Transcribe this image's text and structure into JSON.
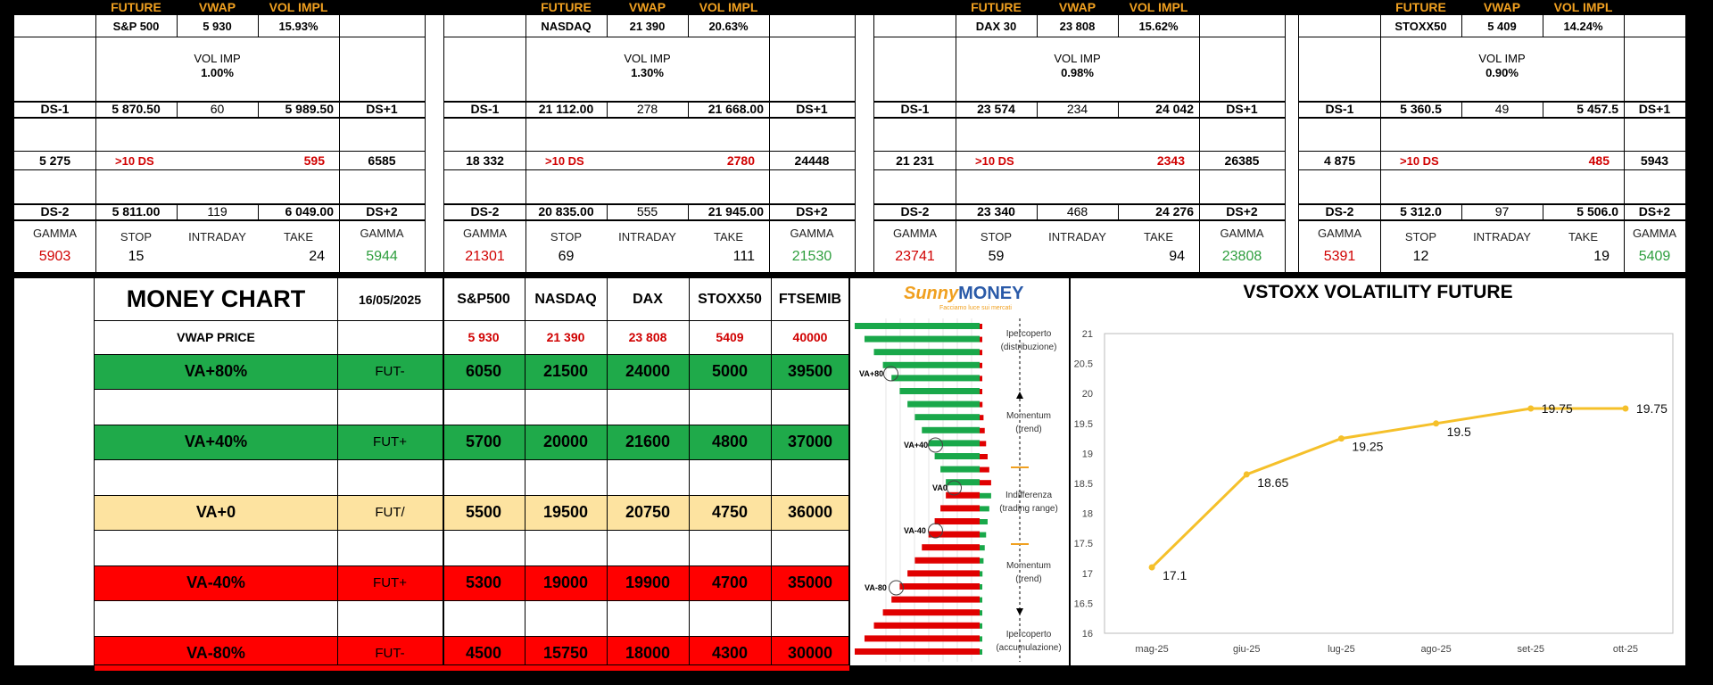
{
  "header": {
    "future": "FUTURE",
    "vwap": "VWAP",
    "vol_impl": "VOL IMPL"
  },
  "panels": [
    {
      "name": "S&P 500",
      "vwap": "5 930",
      "vol_impl": "15.93%",
      "vol_imp_label": "VOL IMP",
      "vol_imp": "1.00%",
      "ds1_label": "DS-1",
      "ds1": "5 870.50",
      "ds1_mid": "60",
      "ds1_up": "5 989.50",
      "dsp1_label": "DS+1",
      "low": "5 275",
      "gt10": ">10 DS",
      "range": "595",
      "high": "6585",
      "ds2_label": "DS-2",
      "ds2": "5 811.00",
      "ds2_mid": "119",
      "ds2_up": "6 049.00",
      "dsp2_label": "DS+2",
      "gamma_label": "GAMMA",
      "stop_label": "STOP",
      "intraday_label": "INTRADAY",
      "take_label": "TAKE",
      "gamma_low": "5903",
      "stop": "15",
      "take": "24",
      "gamma_high": "5944"
    },
    {
      "name": "NASDAQ",
      "vwap": "21 390",
      "vol_impl": "20.63%",
      "vol_imp_label": "VOL IMP",
      "vol_imp": "1.30%",
      "ds1_label": "DS-1",
      "ds1": "21 112.00",
      "ds1_mid": "278",
      "ds1_up": "21 668.00",
      "dsp1_label": "DS+1",
      "low": "18 332",
      "gt10": ">10 DS",
      "range": "2780",
      "high": "24448",
      "ds2_label": "DS-2",
      "ds2": "20 835.00",
      "ds2_mid": "555",
      "ds2_up": "21 945.00",
      "dsp2_label": "DS+2",
      "gamma_label": "GAMMA",
      "stop_label": "STOP",
      "intraday_label": "INTRADAY",
      "take_label": "TAKE",
      "gamma_low": "21301",
      "stop": "69",
      "take": "111",
      "gamma_high": "21530"
    },
    {
      "name": "DAX 30",
      "vwap": "23 808",
      "vol_impl": "15.62%",
      "vol_imp_label": "VOL IMP",
      "vol_imp": "0.98%",
      "ds1_label": "DS-1",
      "ds1": "23 574",
      "ds1_mid": "234",
      "ds1_up": "24 042",
      "dsp1_label": "DS+1",
      "low": "21 231",
      "gt10": ">10 DS",
      "range": "2343",
      "high": "26385",
      "ds2_label": "DS-2",
      "ds2": "23 340",
      "ds2_mid": "468",
      "ds2_up": "24 276",
      "dsp2_label": "DS+2",
      "gamma_label": "GAMMA",
      "stop_label": "STOP",
      "intraday_label": "INTRADAY",
      "take_label": "TAKE",
      "gamma_low": "23741",
      "stop": "59",
      "take": "94",
      "gamma_high": "23808"
    },
    {
      "name": "STOXX50",
      "vwap": "5 409",
      "vol_impl": "14.24%",
      "vol_imp_label": "VOL IMP",
      "vol_imp": "0.90%",
      "ds1_label": "DS-1",
      "ds1": "5 360.5",
      "ds1_mid": "49",
      "ds1_up": "5 457.5",
      "dsp1_label": "DS+1",
      "low": "4 875",
      "gt10": ">10 DS",
      "range": "485",
      "high": "5943",
      "ds2_label": "DS-2",
      "ds2": "5 312.0",
      "ds2_mid": "97",
      "ds2_up": "5 506.0",
      "dsp2_label": "DS+2",
      "gamma_label": "GAMMA",
      "stop_label": "STOP",
      "intraday_label": "INTRADAY",
      "take_label": "TAKE",
      "gamma_low": "5391",
      "stop": "12",
      "take": "19",
      "gamma_high": "5409"
    }
  ],
  "money_chart": {
    "title": "MONEY CHART",
    "date": "16/05/2025",
    "columns": [
      "S&P500",
      "NASDAQ",
      "DAX",
      "STOXX50",
      "FTSEMIB"
    ],
    "vwap_label": "VWAP PRICE",
    "vwap_values": [
      "5 930",
      "21 390",
      "23 808",
      "5409",
      "40000"
    ],
    "rows": [
      {
        "label": "VA+80%",
        "fut": "FUT-",
        "values": [
          "6050",
          "21500",
          "24000",
          "5000",
          "39500"
        ],
        "color": "#1faa4a"
      },
      {
        "label": "VA+40%",
        "fut": "FUT+",
        "values": [
          "5700",
          "20000",
          "21600",
          "4800",
          "37000"
        ],
        "color": "#1faa4a"
      },
      {
        "label": "VA+0",
        "fut": "FUT/",
        "values": [
          "5500",
          "19500",
          "20750",
          "4750",
          "36000"
        ],
        "color": "#fde3a0"
      },
      {
        "label": "VA-40%",
        "fut": "FUT+",
        "values": [
          "5300",
          "19000",
          "19900",
          "4700",
          "35000"
        ],
        "color": "#ff0000"
      },
      {
        "label": "VA-80%",
        "fut": "FUT-",
        "values": [
          "4500",
          "15750",
          "18000",
          "4300",
          "30000"
        ],
        "color": "#ff0000"
      }
    ]
  },
  "sunny": {
    "logo": "MONEY",
    "tagline": "Facciamo luce sui mercati",
    "labels": [
      "VA+80",
      "VA+40",
      "VA0",
      "VA-40",
      "VA-80"
    ],
    "zones": [
      {
        "line1": "Ipercoperto",
        "line2": "(distribuzione)"
      },
      {
        "line1": "Momentum",
        "line2": "(trend)"
      },
      {
        "line1": "Indifferenza",
        "line2": "(trading range)"
      },
      {
        "line1": "Momentum",
        "line2": "(trend)"
      },
      {
        "line1": "Ipercoperto",
        "line2": "(accumulazione)"
      }
    ]
  },
  "chart_data": {
    "type": "line",
    "title": "VSTOXX VOLATILITY FUTURE",
    "categories": [
      "mag-25",
      "giu-25",
      "lug-25",
      "ago-25",
      "set-25",
      "ott-25"
    ],
    "values": [
      17.1,
      18.65,
      19.25,
      19.5,
      19.75,
      19.75
    ],
    "data_labels": [
      "17.1",
      "18.65",
      "19.25",
      "19.5",
      "19.75",
      "19.75"
    ],
    "ylim": [
      16,
      21
    ],
    "yticks": [
      "16",
      "16.5",
      "17",
      "17.5",
      "18",
      "18.5",
      "19",
      "19.5",
      "20",
      "20.5",
      "21"
    ],
    "grid": false,
    "line_color": "#f5c02a"
  }
}
